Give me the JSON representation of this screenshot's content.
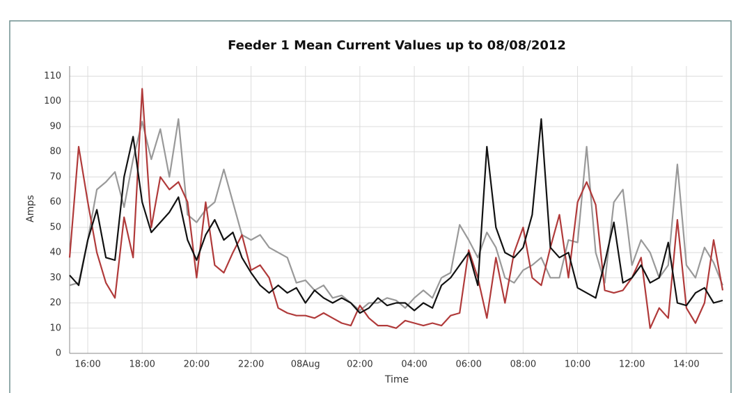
{
  "chart_data": {
    "type": "line",
    "title": "Feeder 1 Mean Current Values up to 08/08/2012",
    "x_label": "Time",
    "y_label": "Amps",
    "categories": [
      null,
      null,
      "16:00",
      null,
      null,
      null,
      null,
      null,
      "18:00",
      null,
      null,
      null,
      null,
      null,
      "20:00",
      null,
      null,
      null,
      null,
      null,
      "22:00",
      null,
      null,
      null,
      null,
      null,
      "08Aug",
      null,
      null,
      null,
      null,
      null,
      "02:00",
      null,
      null,
      null,
      null,
      null,
      "04:00",
      null,
      null,
      null,
      null,
      null,
      "06:00",
      null,
      null,
      null,
      null,
      null,
      "08:00",
      null,
      null,
      null,
      null,
      null,
      "10:00",
      null,
      null,
      null,
      null,
      null,
      "12:00",
      null,
      null,
      null,
      null,
      null,
      "14:00",
      null,
      null,
      null,
      null
    ],
    "series": [
      {
        "color": "#999999",
        "values": [
          27,
          28,
          45,
          65,
          68,
          72,
          58,
          77,
          92,
          77,
          89,
          70,
          93,
          55,
          52,
          57,
          60,
          73,
          60,
          47,
          45,
          47,
          42,
          40,
          38,
          28,
          29,
          25,
          27,
          22,
          23,
          20,
          17,
          20,
          20,
          22,
          21,
          18,
          22,
          25,
          22,
          30,
          32,
          51,
          45,
          38,
          48,
          42,
          30,
          28,
          33,
          35,
          38,
          30,
          30,
          45,
          44,
          82,
          40,
          28,
          60,
          65,
          35,
          45,
          40,
          30,
          35,
          75,
          35,
          30,
          42,
          36,
          27
        ]
      },
      {
        "color": "#b03a3a",
        "values": [
          38,
          82,
          60,
          40,
          28,
          22,
          54,
          38,
          105,
          50,
          70,
          65,
          68,
          60,
          30,
          60,
          35,
          32,
          40,
          47,
          33,
          35,
          30,
          18,
          16,
          15,
          15,
          14,
          16,
          14,
          12,
          11,
          19,
          14,
          11,
          11,
          10,
          13,
          12,
          11,
          12,
          11,
          15,
          16,
          41,
          30,
          14,
          38,
          20,
          40,
          50,
          30,
          27,
          42,
          55,
          30,
          60,
          68,
          59,
          25,
          24,
          25,
          30,
          38,
          10,
          18,
          14,
          53,
          18,
          12,
          20,
          45,
          25
        ]
      },
      {
        "color": "#111111",
        "values": [
          31,
          27,
          45,
          57,
          38,
          37,
          70,
          86,
          60,
          48,
          52,
          56,
          62,
          45,
          37,
          47,
          53,
          45,
          48,
          38,
          32,
          27,
          24,
          27,
          24,
          26,
          20,
          25,
          22,
          20,
          22,
          20,
          16,
          18,
          22,
          19,
          20,
          20,
          17,
          20,
          18,
          27,
          30,
          35,
          40,
          27,
          82,
          50,
          40,
          38,
          42,
          55,
          93,
          42,
          38,
          40,
          26,
          24,
          22,
          36,
          52,
          28,
          30,
          35,
          28,
          30,
          44,
          20,
          19,
          24,
          26,
          20,
          21
        ]
      }
    ],
    "ylim": [
      0,
      114
    ],
    "yticks": [
      0,
      10,
      20,
      30,
      40,
      50,
      60,
      70,
      80,
      90,
      100,
      110
    ],
    "grid": true
  }
}
